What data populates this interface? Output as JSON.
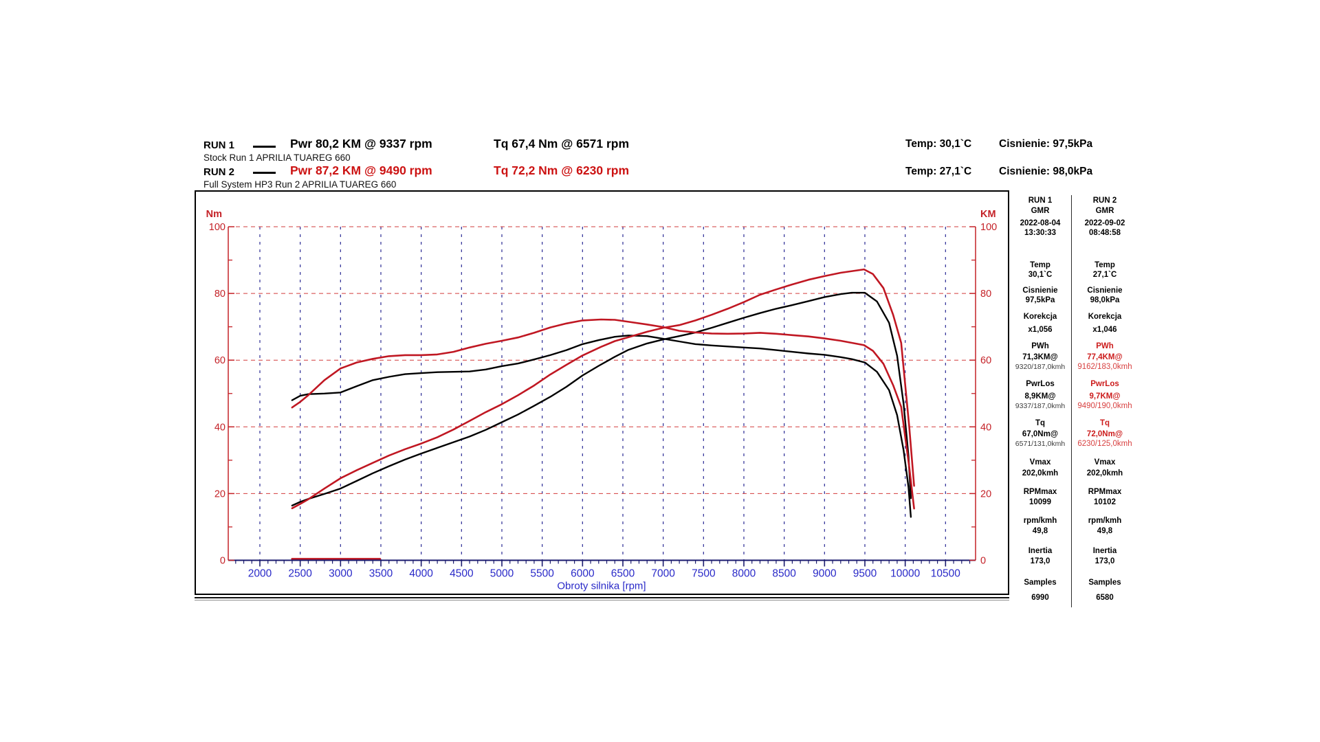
{
  "header": {
    "run1": {
      "name": "RUN 1",
      "pwr": "Pwr 80,2 KM @ 9337 rpm",
      "tq": "Tq 67,4 Nm @ 6571 rpm",
      "temp": "Temp: 30,1`C",
      "pressure": "Cisnienie: 97,5kPa",
      "subtitle": "Stock Run 1 APRILIA TUAREG 660"
    },
    "run2": {
      "name": "RUN 2",
      "pwr": "Pwr 87,2 KM @ 9490 rpm",
      "tq": "Tq 72,2 Nm @ 6230 rpm",
      "temp": "Temp: 27,1`C",
      "pressure": "Cisnienie: 98,0kPa",
      "subtitle": "Full System HP3 Run 2 APRILIA TUAREG 660"
    }
  },
  "side_panel": {
    "labels": {
      "dyno": "GMR",
      "temp": "Temp",
      "pressure": "Cisnienie",
      "correction": "Korekcja",
      "pwh": "PWh",
      "pwrlos": "PwrLos",
      "tq": "Tq",
      "vmax": "Vmax",
      "rpmmax": "RPMmax",
      "rpmkmh": "rpm/kmh",
      "inertia": "Inertia",
      "samples": "Samples"
    },
    "run1": {
      "title": "RUN 1",
      "date": "2022-08-04",
      "time": "13:30:33",
      "temp": "30,1`C",
      "pressure": "97,5kPa",
      "correction": "x1,056",
      "pwh": "71,3KM@",
      "pwh_at": "9320/187,0kmh",
      "pwrlos": "8,9KM@",
      "pwrlos_at": "9337/187,0kmh",
      "tq": "67,0Nm@",
      "tq_at": "6571/131,0kmh",
      "vmax": "202,0kmh",
      "rpmmax": "10099",
      "rpmkmh": "49,8",
      "inertia": "173,0",
      "samples": "6990"
    },
    "run2": {
      "title": "RUN 2",
      "date": "2022-09-02",
      "time": "08:48:58",
      "temp": "27,1`C",
      "pressure": "98,0kPa",
      "correction": "x1,046",
      "pwh": "77,4KM@",
      "pwh_at": "9162/183,0kmh",
      "pwrlos": "9,7KM@",
      "pwrlos_at": "9490/190,0kmh",
      "tq": "72,0Nm@",
      "tq_at": "6230/125,0kmh",
      "vmax": "202,0kmh",
      "rpmmax": "10102",
      "rpmkmh": "49,8",
      "inertia": "173,0",
      "samples": "6580"
    }
  },
  "chart_data": {
    "type": "line",
    "x_axis": {
      "label": "Obroty silnika [rpm]",
      "min": 2000,
      "max": 10500,
      "major_tick_step": 500,
      "minor_tick_step": 100,
      "ticks": [
        2000,
        2500,
        3000,
        3500,
        4000,
        4500,
        5000,
        5500,
        6000,
        6500,
        7000,
        7500,
        8000,
        8500,
        9000,
        9500,
        10000,
        10500
      ]
    },
    "y_axis_left": {
      "label": "Nm",
      "min": 0,
      "max": 100,
      "major_tick_step": 20,
      "minor_tick_step": 10,
      "ticks": [
        0,
        20,
        40,
        60,
        80,
        100
      ]
    },
    "y_axis_right": {
      "label": "KM",
      "min": 0,
      "max": 100,
      "major_tick_step": 20,
      "minor_tick_step": 10,
      "ticks": [
        0,
        20,
        40,
        60,
        80,
        100
      ]
    },
    "grid": {
      "horizontal_values": [
        20,
        40,
        60,
        80,
        100
      ],
      "vertical_at_major_x_ticks": true
    },
    "colors": {
      "run1": "#000000",
      "run2": "#c01722",
      "axis_red": "#c42127",
      "grid_red": "#d23a3a",
      "grid_navy": "#3a3a9c",
      "x_axis_line": "#1a1a6e",
      "x_labels": "#2929c8"
    },
    "peaks": {
      "run1_power": {
        "value_km": 80.2,
        "rpm": 9337
      },
      "run1_torque": {
        "value_nm": 67.4,
        "rpm": 6571
      },
      "run2_power": {
        "value_km": 87.2,
        "rpm": 9490
      },
      "run2_torque": {
        "value_nm": 72.2,
        "rpm": 6230
      }
    },
    "power_formula": "KM = Nm * rpm / 7023.5",
    "series": [
      {
        "name": "run1_torque_nm",
        "run": "RUN 1 Stock",
        "unit": "Nm",
        "color_key": "run1",
        "points": [
          [
            2400,
            48
          ],
          [
            2500,
            49.3
          ],
          [
            2600,
            49.8
          ],
          [
            2800,
            50.0
          ],
          [
            3000,
            50.3
          ],
          [
            3200,
            52.2
          ],
          [
            3400,
            54.0
          ],
          [
            3600,
            55.0
          ],
          [
            3800,
            55.8
          ],
          [
            4000,
            56.1
          ],
          [
            4200,
            56.4
          ],
          [
            4400,
            56.5
          ],
          [
            4600,
            56.6
          ],
          [
            4800,
            57.2
          ],
          [
            5000,
            58.2
          ],
          [
            5200,
            59.0
          ],
          [
            5400,
            60.2
          ],
          [
            5600,
            61.5
          ],
          [
            5800,
            63.0
          ],
          [
            6000,
            64.8
          ],
          [
            6200,
            66.0
          ],
          [
            6400,
            67.0
          ],
          [
            6571,
            67.4
          ],
          [
            6800,
            67.2
          ],
          [
            7000,
            66.4
          ],
          [
            7200,
            65.6
          ],
          [
            7400,
            64.8
          ],
          [
            7600,
            64.4
          ],
          [
            7800,
            64.1
          ],
          [
            8000,
            63.8
          ],
          [
            8200,
            63.5
          ],
          [
            8400,
            63.0
          ],
          [
            8600,
            62.5
          ],
          [
            8800,
            62.0
          ],
          [
            9000,
            61.6
          ],
          [
            9200,
            60.9
          ],
          [
            9337,
            60.3
          ],
          [
            9500,
            59.3
          ],
          [
            9650,
            56.5
          ],
          [
            9800,
            51.0
          ],
          [
            9900,
            43.5
          ],
          [
            9980,
            33
          ],
          [
            10040,
            22
          ],
          [
            10070,
            13
          ]
        ]
      },
      {
        "name": "run1_power_km",
        "run": "RUN 1 Stock",
        "unit": "KM",
        "color_key": "run1",
        "points": [
          [
            2400,
            16.4
          ],
          [
            2500,
            17.5
          ],
          [
            2600,
            18.4
          ],
          [
            2800,
            19.9
          ],
          [
            3000,
            21.5
          ],
          [
            3200,
            23.8
          ],
          [
            3400,
            26.1
          ],
          [
            3600,
            28.2
          ],
          [
            3800,
            30.2
          ],
          [
            4000,
            32.0
          ],
          [
            4200,
            33.7
          ],
          [
            4400,
            35.4
          ],
          [
            4600,
            37.1
          ],
          [
            4800,
            39.1
          ],
          [
            5000,
            41.4
          ],
          [
            5200,
            43.7
          ],
          [
            5400,
            46.3
          ],
          [
            5600,
            49.0
          ],
          [
            5800,
            52.0
          ],
          [
            6000,
            55.4
          ],
          [
            6200,
            58.3
          ],
          [
            6400,
            61.0
          ],
          [
            6571,
            63.1
          ],
          [
            6800,
            65.0
          ],
          [
            7000,
            66.2
          ],
          [
            7200,
            67.2
          ],
          [
            7400,
            68.3
          ],
          [
            7600,
            69.7
          ],
          [
            7800,
            71.2
          ],
          [
            8000,
            72.7
          ],
          [
            8200,
            74.1
          ],
          [
            8400,
            75.4
          ],
          [
            8600,
            76.5
          ],
          [
            8800,
            77.7
          ],
          [
            9000,
            78.9
          ],
          [
            9200,
            79.8
          ],
          [
            9337,
            80.2
          ],
          [
            9500,
            80.2
          ],
          [
            9650,
            77.6
          ],
          [
            9800,
            71.2
          ],
          [
            9900,
            61.3
          ],
          [
            9980,
            46.9
          ],
          [
            10040,
            31.4
          ],
          [
            10070,
            18.6
          ]
        ]
      },
      {
        "name": "run2_torque_nm",
        "run": "RUN 2 Full System HP3",
        "unit": "Nm",
        "color_key": "run2",
        "points": [
          [
            2400,
            45.8
          ],
          [
            2500,
            47.5
          ],
          [
            2600,
            49.5
          ],
          [
            2800,
            54.0
          ],
          [
            3000,
            57.5
          ],
          [
            3200,
            59.3
          ],
          [
            3400,
            60.4
          ],
          [
            3600,
            61.2
          ],
          [
            3800,
            61.5
          ],
          [
            4000,
            61.5
          ],
          [
            4200,
            61.7
          ],
          [
            4400,
            62.5
          ],
          [
            4600,
            63.8
          ],
          [
            4800,
            64.9
          ],
          [
            5000,
            65.8
          ],
          [
            5200,
            66.8
          ],
          [
            5400,
            68.2
          ],
          [
            5600,
            69.8
          ],
          [
            5800,
            71.0
          ],
          [
            6000,
            71.9
          ],
          [
            6230,
            72.2
          ],
          [
            6400,
            72.1
          ],
          [
            6600,
            71.4
          ],
          [
            6800,
            70.7
          ],
          [
            7000,
            69.9
          ],
          [
            7200,
            68.8
          ],
          [
            7400,
            68.3
          ],
          [
            7600,
            68.0
          ],
          [
            7800,
            67.9
          ],
          [
            8000,
            68.0
          ],
          [
            8200,
            68.2
          ],
          [
            8400,
            67.9
          ],
          [
            8600,
            67.5
          ],
          [
            8800,
            67.1
          ],
          [
            9000,
            66.5
          ],
          [
            9200,
            65.8
          ],
          [
            9400,
            64.9
          ],
          [
            9490,
            64.5
          ],
          [
            9600,
            62.8
          ],
          [
            9730,
            58.9
          ],
          [
            9850,
            52.5
          ],
          [
            9950,
            46
          ],
          [
            10050,
            28
          ],
          [
            10110,
            15.5
          ]
        ]
      },
      {
        "name": "run2_power_km",
        "run": "RUN 2 Full System HP3",
        "unit": "KM",
        "color_key": "run2",
        "points": [
          [
            2400,
            15.6
          ],
          [
            2500,
            16.9
          ],
          [
            2600,
            18.3
          ],
          [
            2800,
            21.5
          ],
          [
            3000,
            24.6
          ],
          [
            3200,
            27.0
          ],
          [
            3400,
            29.2
          ],
          [
            3600,
            31.4
          ],
          [
            3800,
            33.3
          ],
          [
            4000,
            35.0
          ],
          [
            4200,
            36.9
          ],
          [
            4400,
            39.2
          ],
          [
            4600,
            41.8
          ],
          [
            4800,
            44.4
          ],
          [
            5000,
            46.8
          ],
          [
            5200,
            49.5
          ],
          [
            5400,
            52.4
          ],
          [
            5600,
            55.7
          ],
          [
            5800,
            58.6
          ],
          [
            6000,
            61.4
          ],
          [
            6230,
            64.0
          ],
          [
            6400,
            65.7
          ],
          [
            6600,
            67.1
          ],
          [
            6800,
            68.5
          ],
          [
            7000,
            69.7
          ],
          [
            7200,
            70.5
          ],
          [
            7400,
            71.9
          ],
          [
            7600,
            73.6
          ],
          [
            7800,
            75.4
          ],
          [
            8000,
            77.4
          ],
          [
            8200,
            79.6
          ],
          [
            8400,
            81.2
          ],
          [
            8600,
            82.7
          ],
          [
            8800,
            84.1
          ],
          [
            9000,
            85.2
          ],
          [
            9200,
            86.2
          ],
          [
            9400,
            86.9
          ],
          [
            9490,
            87.2
          ],
          [
            9600,
            85.8
          ],
          [
            9730,
            81.6
          ],
          [
            9850,
            73.6
          ],
          [
            9950,
            65.2
          ],
          [
            10050,
            40.1
          ],
          [
            10110,
            22.3
          ]
        ]
      },
      {
        "name": "run2_zero_baseline",
        "run": "RUN 2 Full System HP3",
        "unit": "Nm",
        "color_key": "run2",
        "points": [
          [
            2400,
            0.4
          ],
          [
            3000,
            0.4
          ],
          [
            3490,
            0.4
          ]
        ]
      }
    ]
  }
}
